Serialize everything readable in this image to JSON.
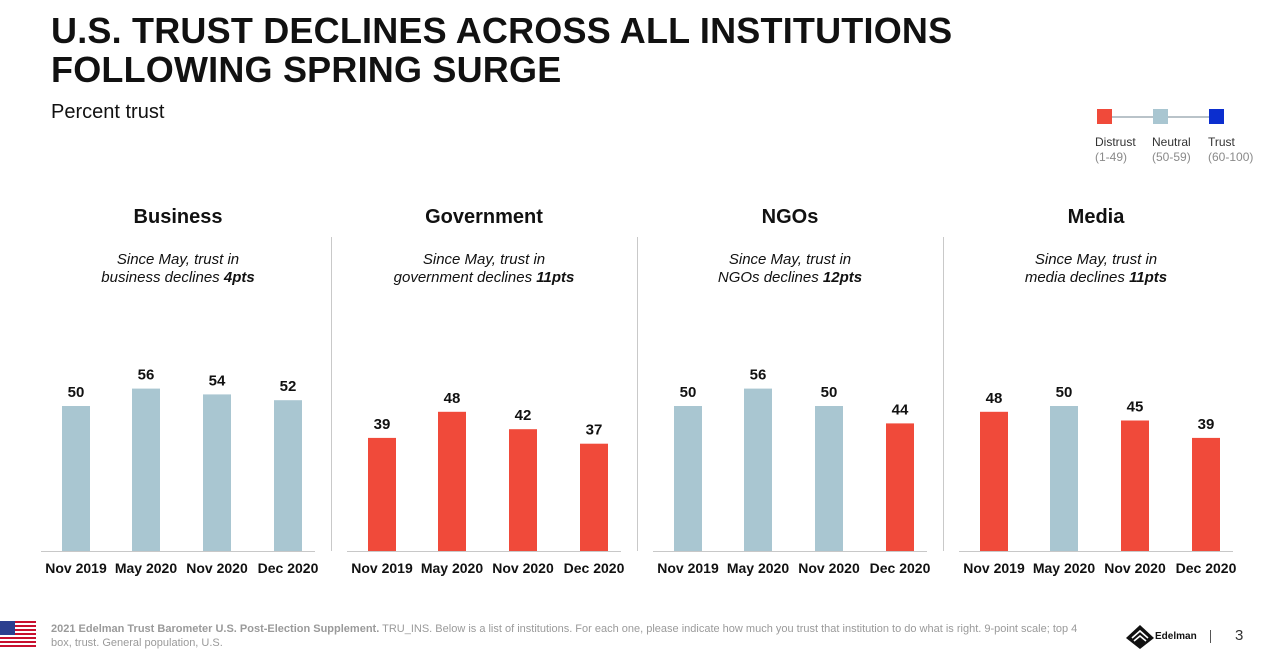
{
  "title": {
    "line1": "U.S. TRUST DECLINES ACROSS ALL INSTITUTIONS",
    "line2": "FOLLOWING SPRING SURGE"
  },
  "subtitle": "Percent trust",
  "legend": {
    "items": [
      {
        "label": "Distrust",
        "range": "(1-49)",
        "color": "#f04a3a"
      },
      {
        "label": "Neutral",
        "range": "(50-59)",
        "color": "#a9c6d1"
      },
      {
        "label": "Trust",
        "range": "(60-100)",
        "color": "#0b2ecf"
      }
    ]
  },
  "colors": {
    "distrust": "#f04a3a",
    "neutral": "#a9c6d1",
    "trust": "#0b2ecf"
  },
  "chart_data": [
    {
      "type": "bar",
      "title": "Business",
      "subtitle_pre": "Since May, trust in",
      "subtitle_mid": "business declines",
      "subtitle_bold": "4pts",
      "categories": [
        "Nov 2019",
        "May 2020",
        "Nov 2020",
        "Dec 2020"
      ],
      "values": [
        50,
        56,
        54,
        52
      ],
      "ylim": [
        0,
        100
      ]
    },
    {
      "type": "bar",
      "title": "Government",
      "subtitle_pre": "Since May, trust in",
      "subtitle_mid": "government declines",
      "subtitle_bold": "11pts",
      "categories": [
        "Nov 2019",
        "May 2020",
        "Nov 2020",
        "Dec 2020"
      ],
      "values": [
        39,
        48,
        42,
        37
      ],
      "ylim": [
        0,
        100
      ]
    },
    {
      "type": "bar",
      "title": "NGOs",
      "subtitle_pre": "Since May, trust in",
      "subtitle_mid": "NGOs declines",
      "subtitle_bold": "12pts",
      "categories": [
        "Nov 2019",
        "May 2020",
        "Nov 2020",
        "Dec 2020"
      ],
      "values": [
        50,
        56,
        50,
        44
      ],
      "ylim": [
        0,
        100
      ]
    },
    {
      "type": "bar",
      "title": "Media",
      "subtitle_pre": "Since May, trust in",
      "subtitle_mid": "media declines",
      "subtitle_bold": "11pts",
      "categories": [
        "Nov 2019",
        "May 2020",
        "Nov 2020",
        "Dec 2020"
      ],
      "values": [
        48,
        50,
        45,
        39
      ],
      "ylim": [
        0,
        100
      ]
    }
  ],
  "footer": {
    "source_bold": "2021 Edelman Trust Barometer U.S. Post-Election Supplement.",
    "source_text": " TRU_INS. Below is a list of institutions. For each one, please indicate how much you trust that institution to do what is right. 9-point scale; top 4 box, trust. General population, U.S.",
    "brand": "Edelman",
    "page_number": "3"
  }
}
